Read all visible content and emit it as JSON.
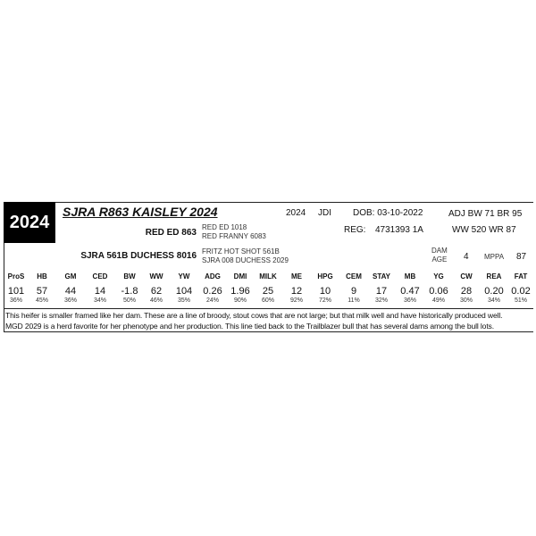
{
  "lot": "2024",
  "name": "SJRA R863 KAISLEY 2024",
  "year": "2024",
  "owner": "JDI",
  "dob": "DOB: 03-10-2022",
  "reg_label": "REG:",
  "reg": "4731393 1A",
  "adj1": "ADJ BW 71 BR 95",
  "adj2": "WW 520 WR 87",
  "sire": "RED ED 863",
  "sire_sire": "RED ED 1018",
  "sire_dam": "RED FRANNY 6083",
  "dam": "SJRA 561B DUCHESS 8016",
  "dam_sire": "FRITZ HOT SHOT 561B",
  "dam_dam": "SJRA 008 DUCHESS 2029",
  "dam_age_label1": "DAM",
  "dam_age_label2": "AGE",
  "dam_age": "4",
  "mppa_label": "MPPA",
  "mppa": "87",
  "epds": [
    {
      "h": "ProS",
      "v": "101",
      "p": "36%"
    },
    {
      "h": "HB",
      "v": "57",
      "p": "45%"
    },
    {
      "h": "GM",
      "v": "44",
      "p": "36%"
    },
    {
      "h": "CED",
      "v": "14",
      "p": "34%"
    },
    {
      "h": "BW",
      "v": "-1.8",
      "p": "50%"
    },
    {
      "h": "WW",
      "v": "62",
      "p": "46%"
    },
    {
      "h": "YW",
      "v": "104",
      "p": "35%"
    },
    {
      "h": "ADG",
      "v": "0.26",
      "p": "24%"
    },
    {
      "h": "DMI",
      "v": "1.96",
      "p": "90%"
    },
    {
      "h": "MILK",
      "v": "25",
      "p": "60%"
    },
    {
      "h": "ME",
      "v": "12",
      "p": "92%"
    },
    {
      "h": "HPG",
      "v": "10",
      "p": "72%"
    },
    {
      "h": "CEM",
      "v": "9",
      "p": "11%"
    },
    {
      "h": "STAY",
      "v": "17",
      "p": "32%"
    },
    {
      "h": "MB",
      "v": "0.47",
      "p": "36%"
    },
    {
      "h": "YG",
      "v": "0.06",
      "p": "49%"
    },
    {
      "h": "CW",
      "v": "28",
      "p": "30%"
    },
    {
      "h": "REA",
      "v": "0.20",
      "p": "34%"
    },
    {
      "h": "FAT",
      "v": "0.02",
      "p": "51%"
    }
  ],
  "notes": [
    "This heifer is smaller framed like her dam.  These are a line of broody, stout cows that are not large; but that milk well and have historically produced well.",
    "MGD 2029 is a herd favorite for her phenotype and her production.  This line tied back to the Trailblazer bull that has several dams among the bull lots."
  ]
}
